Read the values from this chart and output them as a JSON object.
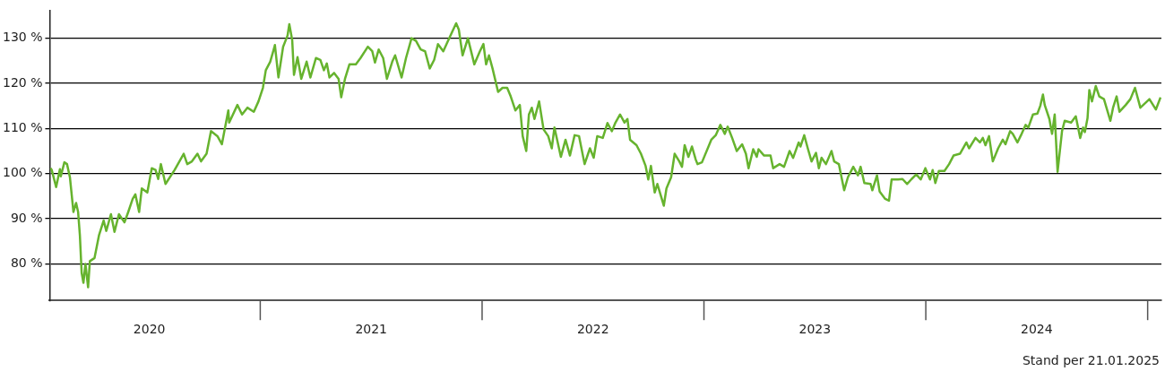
{
  "chart_data": {
    "type": "line",
    "x": [
      2020.055,
      2020.06,
      2020.08,
      2020.097,
      2020.101,
      2020.117,
      2020.129,
      2020.142,
      2020.158,
      2020.17,
      2020.179,
      2020.187,
      2020.195,
      2020.203,
      2020.212,
      2020.224,
      2020.232,
      2020.253,
      2020.273,
      2020.294,
      2020.306,
      2020.327,
      2020.343,
      2020.363,
      2020.388,
      2020.405,
      2020.425,
      2020.437,
      2020.454,
      2020.466,
      2020.491,
      2020.511,
      2020.528,
      2020.54,
      2020.552,
      2020.573,
      2020.614,
      2020.655,
      2020.671,
      2020.692,
      2020.717,
      2020.733,
      2020.758,
      2020.778,
      2020.807,
      2020.827,
      2020.856,
      2020.86,
      2020.897,
      2020.918,
      2020.942,
      2020.971,
      2020.992,
      2021.012,
      2021.025,
      2021.045,
      2021.062,
      2021.066,
      2021.082,
      2021.103,
      2021.123,
      2021.131,
      2021.144,
      2021.152,
      2021.168,
      2021.185,
      2021.197,
      2021.209,
      2021.226,
      2021.251,
      2021.271,
      2021.287,
      2021.3,
      2021.312,
      2021.333,
      2021.353,
      2021.365,
      2021.382,
      2021.402,
      2021.431,
      2021.452,
      2021.485,
      2021.505,
      2021.517,
      2021.534,
      2021.554,
      2021.571,
      2021.595,
      2021.608,
      2021.637,
      2021.657,
      2021.682,
      2021.702,
      2021.723,
      2021.743,
      2021.764,
      2021.784,
      2021.801,
      2021.825,
      2021.846,
      2021.883,
      2021.895,
      2021.912,
      2021.936,
      2021.965,
      2021.99,
      2022.006,
      2022.018,
      2022.031,
      2022.047,
      2022.072,
      2022.092,
      2022.113,
      2022.129,
      2022.15,
      2022.17,
      2022.183,
      2022.199,
      2022.211,
      2022.224,
      2022.236,
      2022.257,
      2022.277,
      2022.298,
      2022.314,
      2022.326,
      2022.355,
      2022.376,
      2022.396,
      2022.417,
      2022.437,
      2022.462,
      2022.486,
      2022.503,
      2022.519,
      2022.544,
      2022.565,
      2022.585,
      2022.601,
      2022.622,
      2022.642,
      2022.655,
      2022.667,
      2022.696,
      2022.716,
      2022.737,
      2022.749,
      2022.761,
      2022.778,
      2022.79,
      2022.819,
      2022.831,
      2022.852,
      2022.868,
      2022.889,
      2022.901,
      2022.913,
      2022.93,
      2022.946,
      2022.963,
      2022.971,
      2022.991,
      2023.033,
      2023.053,
      2023.074,
      2023.094,
      2023.107,
      2023.127,
      2023.148,
      2023.172,
      2023.189,
      2023.201,
      2023.222,
      2023.238,
      2023.246,
      2023.271,
      2023.3,
      2023.312,
      2023.341,
      2023.361,
      2023.386,
      2023.402,
      2023.427,
      2023.435,
      2023.452,
      2023.468,
      2023.485,
      2023.505,
      2023.518,
      2023.53,
      2023.55,
      2023.575,
      2023.587,
      2023.608,
      2023.62,
      2023.632,
      2023.649,
      2023.673,
      2023.694,
      2023.706,
      2023.723,
      2023.751,
      2023.759,
      2023.78,
      2023.792,
      2023.817,
      2023.834,
      2023.846,
      2023.875,
      2023.895,
      2023.916,
      2023.936,
      2023.957,
      2023.977,
      2023.998,
      2024.019,
      2024.031,
      2024.043,
      2024.059,
      2024.084,
      2024.105,
      2024.125,
      2024.154,
      2024.183,
      2024.195,
      2024.224,
      2024.244,
      2024.257,
      2024.269,
      2024.285,
      2024.302,
      2024.326,
      2024.347,
      2024.359,
      2024.38,
      2024.392,
      2024.413,
      2024.429,
      2024.45,
      2024.462,
      2024.483,
      2024.503,
      2024.516,
      2024.528,
      2024.536,
      2024.557,
      2024.569,
      2024.581,
      2024.594,
      2024.614,
      2024.626,
      2024.655,
      2024.676,
      2024.696,
      2024.709,
      2024.717,
      2024.729,
      2024.737,
      2024.749,
      2024.766,
      2024.782,
      2024.803,
      2024.832,
      2024.844,
      2024.86,
      2024.873,
      2024.901,
      2024.922,
      2024.943,
      2024.967,
      2025.008,
      2025.037,
      2025.058
    ],
    "series": [
      {
        "color": "#66b32e",
        "values": [
          101.2,
          100.8,
          97,
          101,
          99.4,
          102.5,
          102.1,
          99.2,
          91.5,
          93.5,
          91.5,
          86.3,
          78,
          75.8,
          80,
          74.8,
          80.6,
          81.3,
          86.3,
          89.6,
          87.3,
          91,
          87.1,
          91,
          89.2,
          91.5,
          94.4,
          95.4,
          91.5,
          96.7,
          95.8,
          101.2,
          100.8,
          98.8,
          102.1,
          97.7,
          100.8,
          104.4,
          102.1,
          102.7,
          104.4,
          102.7,
          104.4,
          109.4,
          108.3,
          106.5,
          114,
          111.3,
          115.2,
          113.1,
          114.6,
          113.7,
          116,
          119,
          122.9,
          124.8,
          127.7,
          128.5,
          121.3,
          128.1,
          130.6,
          133.1,
          129.6,
          121.9,
          125.8,
          121,
          122.9,
          124.8,
          121.3,
          125.6,
          125.2,
          122.9,
          124.4,
          121.3,
          122.3,
          121,
          116.9,
          121,
          124.2,
          124.2,
          125.6,
          128.1,
          127.1,
          124.6,
          127.5,
          125.6,
          121,
          124.8,
          126.2,
          121.3,
          125.6,
          130,
          129.4,
          127.5,
          127.1,
          123.3,
          125.2,
          128.7,
          127.1,
          129.4,
          133.3,
          131.9,
          126.2,
          130,
          124.2,
          127.1,
          128.7,
          124.2,
          126.2,
          123.3,
          118.1,
          119,
          119,
          117.1,
          114,
          115.2,
          108.3,
          105,
          113.1,
          114.6,
          112.1,
          116,
          109.8,
          108.3,
          105.6,
          110.2,
          103.7,
          107.5,
          104,
          108.5,
          108.3,
          102.1,
          105.6,
          103.5,
          108.3,
          107.9,
          111.2,
          109.4,
          111.3,
          113.1,
          111.3,
          112.1,
          107.5,
          106.3,
          104.4,
          101.7,
          98.7,
          101.7,
          95.8,
          97.7,
          92.9,
          96.7,
          99.2,
          104.4,
          102.7,
          101.5,
          106.3,
          103.7,
          106,
          103.1,
          102.1,
          102.5,
          107.5,
          108.5,
          110.8,
          108.8,
          110.4,
          107.9,
          105,
          106.5,
          104.4,
          101.2,
          105.4,
          103.7,
          105.4,
          104,
          104,
          101.2,
          102.1,
          101.5,
          105,
          103.5,
          106.9,
          106,
          108.5,
          105.6,
          102.7,
          104.6,
          101.2,
          103.5,
          102.1,
          105,
          102.7,
          102.1,
          99.2,
          96.3,
          99.2,
          101.5,
          99.6,
          101.5,
          97.9,
          97.7,
          96.3,
          99.6,
          96,
          94.4,
          94,
          98.7,
          98.7,
          98.8,
          97.7,
          98.8,
          99.8,
          98.7,
          101.2,
          98.7,
          100.8,
          97.9,
          100.6,
          100.6,
          102.1,
          104,
          104.4,
          106.9,
          105.6,
          107.9,
          106.9,
          107.9,
          106.3,
          108.3,
          102.7,
          105.6,
          107.5,
          106.5,
          109.4,
          108.8,
          106.9,
          108.5,
          110.8,
          110.2,
          113.1,
          113.3,
          115,
          117.5,
          115.2,
          112.1,
          108.8,
          113.1,
          100.4,
          109.4,
          111.7,
          111.3,
          112.7,
          107.9,
          110.2,
          109.2,
          112.3,
          118.5,
          116,
          119.4,
          117.1,
          116.5,
          111.7,
          114.6,
          117.1,
          113.7,
          115.2,
          116.5,
          119,
          114.6,
          116.5,
          114.2,
          116.9
        ]
      }
    ],
    "xlim": [
      2020.051,
      2025.062
    ],
    "xticks": [
      {
        "value": 2020.5,
        "label": "2020"
      },
      {
        "value": 2021.5,
        "label": "2021"
      },
      {
        "value": 2022.5,
        "label": "2022"
      },
      {
        "value": 2023.5,
        "label": "2023"
      },
      {
        "value": 2024.5,
        "label": "2024"
      }
    ],
    "ylim": [
      71.9,
      136.2
    ],
    "yticks": [
      {
        "value": 80,
        "label": "80 %"
      },
      {
        "value": 90,
        "label": "90 %"
      },
      {
        "value": 100,
        "label": "100 %"
      },
      {
        "value": 110,
        "label": "110 %"
      },
      {
        "value": 120,
        "label": "120 %"
      },
      {
        "value": 130,
        "label": "130 %"
      }
    ],
    "grid": "y",
    "marker": "none",
    "line_style": "solid",
    "annotations": [
      "Stand per 21.01.2025"
    ]
  }
}
